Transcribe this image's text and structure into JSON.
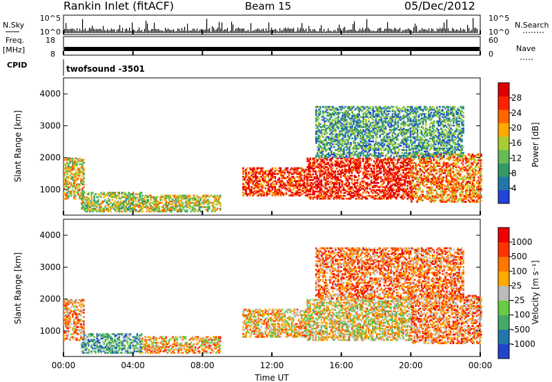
{
  "header": {
    "station": "Rankin Inlet (fitACF)",
    "beam": "Beam 15",
    "date": "05/Dec/2012"
  },
  "panels": {
    "nsky_label": "N.Sky",
    "nsky_ticks": [
      "10^5",
      "10^0"
    ],
    "nsearch_label": "N.Search",
    "nsearch_ticks": [
      "10^5",
      "10^0"
    ],
    "freq_label_1": "Freq.",
    "freq_label_2": "[MHz]",
    "freq_ticks": [
      "18",
      "8"
    ],
    "nave_label": "Nave",
    "nave_ticks": [
      "60",
      "0"
    ],
    "cpid_label": "CPID",
    "cpid_value": "twofsound -3501"
  },
  "colors": {
    "power": [
      "#2244dd",
      "#2277aa",
      "#339966",
      "#66bb55",
      "#aacc33",
      "#ffaa00",
      "#ff6600",
      "#ff2200",
      "#dd0000"
    ],
    "velocity": [
      "#2244cc",
      "#2277aa",
      "#44aa66",
      "#66cc44",
      "#bbbbbb",
      "#ffaa00",
      "#ff7700",
      "#ff3300",
      "#ee0000"
    ]
  },
  "chart_data": [
    {
      "type": "heatmap",
      "name": "power",
      "xlabel": "",
      "ylabel": "Slant Range [km]",
      "ylim": [
        200,
        4500
      ],
      "yticks": [
        "4000",
        "3000",
        "2000",
        "1000"
      ],
      "colorbar_label": "Power [dB]",
      "colorbar_ticks": [
        "28",
        "24",
        "20",
        "16",
        "12",
        "8",
        "4"
      ],
      "echo_regions": [
        {
          "t0": 0.0,
          "t1": 1.2,
          "r0": 700,
          "r1": 2000,
          "level": 0.55
        },
        {
          "t0": 1.0,
          "t1": 4.5,
          "r0": 300,
          "r1": 900,
          "level": 0.45
        },
        {
          "t0": 4.5,
          "t1": 9.0,
          "r0": 300,
          "r1": 800,
          "level": 0.5
        },
        {
          "t0": 10.3,
          "t1": 14.0,
          "r0": 800,
          "r1": 1700,
          "level": 0.85
        },
        {
          "t0": 14.0,
          "t1": 20.0,
          "r0": 700,
          "r1": 2000,
          "level": 0.9
        },
        {
          "t0": 20.0,
          "t1": 24.0,
          "r0": 600,
          "r1": 2100,
          "level": 0.7
        },
        {
          "t0": 14.5,
          "t1": 23.0,
          "r0": 2000,
          "r1": 3600,
          "level": 0.3
        }
      ]
    },
    {
      "type": "heatmap",
      "name": "velocity",
      "xlabel": "Time UT",
      "ylabel": "Slant Range [km]",
      "ylim": [
        200,
        4500
      ],
      "yticks": [
        "4000",
        "3000",
        "2000",
        "1000"
      ],
      "xticks": [
        "00:00",
        "04:00",
        "08:00",
        "12:00",
        "16:00",
        "20:00",
        "00:00"
      ],
      "colorbar_label": "Velocity [m s⁻¹]",
      "colorbar_ticks": [
        "1000",
        "500",
        "100",
        "25",
        "-25",
        "-100",
        "-500",
        "-1000"
      ],
      "echo_regions": [
        {
          "t0": 0.0,
          "t1": 1.2,
          "r0": 700,
          "r1": 2000,
          "level": 0.68
        },
        {
          "t0": 1.0,
          "t1": 4.5,
          "r0": 300,
          "r1": 900,
          "level": 0.3
        },
        {
          "t0": 4.5,
          "t1": 9.0,
          "r0": 300,
          "r1": 800,
          "level": 0.62
        },
        {
          "t0": 10.3,
          "t1": 14.0,
          "r0": 800,
          "r1": 1700,
          "level": 0.6
        },
        {
          "t0": 14.0,
          "t1": 20.0,
          "r0": 700,
          "r1": 2000,
          "level": 0.55
        },
        {
          "t0": 20.0,
          "t1": 24.0,
          "r0": 600,
          "r1": 2100,
          "level": 0.7
        },
        {
          "t0": 14.5,
          "t1": 23.0,
          "r0": 2000,
          "r1": 3600,
          "level": 0.72
        }
      ]
    }
  ]
}
